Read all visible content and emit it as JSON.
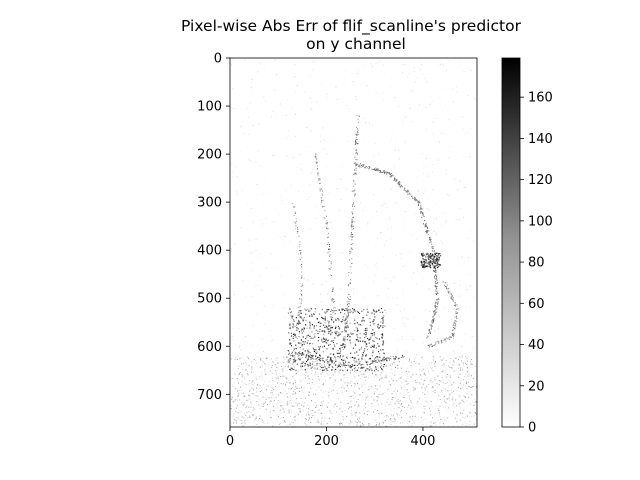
{
  "chart_data": {
    "type": "heatmap",
    "title_lines": [
      "Pixel-wise Abs Err of flif_scanline's predictor",
      "on y channel"
    ],
    "xlim": [
      0,
      512
    ],
    "ylim": [
      768,
      0
    ],
    "x_ticks": [
      0,
      200,
      400
    ],
    "y_ticks": [
      0,
      100,
      200,
      300,
      400,
      500,
      600,
      700
    ],
    "colorbar": {
      "colormap": "Greys",
      "vmin": 0,
      "vmax": 179,
      "ticks": [
        0,
        20,
        40,
        60,
        80,
        100,
        120,
        140,
        160
      ]
    }
  }
}
